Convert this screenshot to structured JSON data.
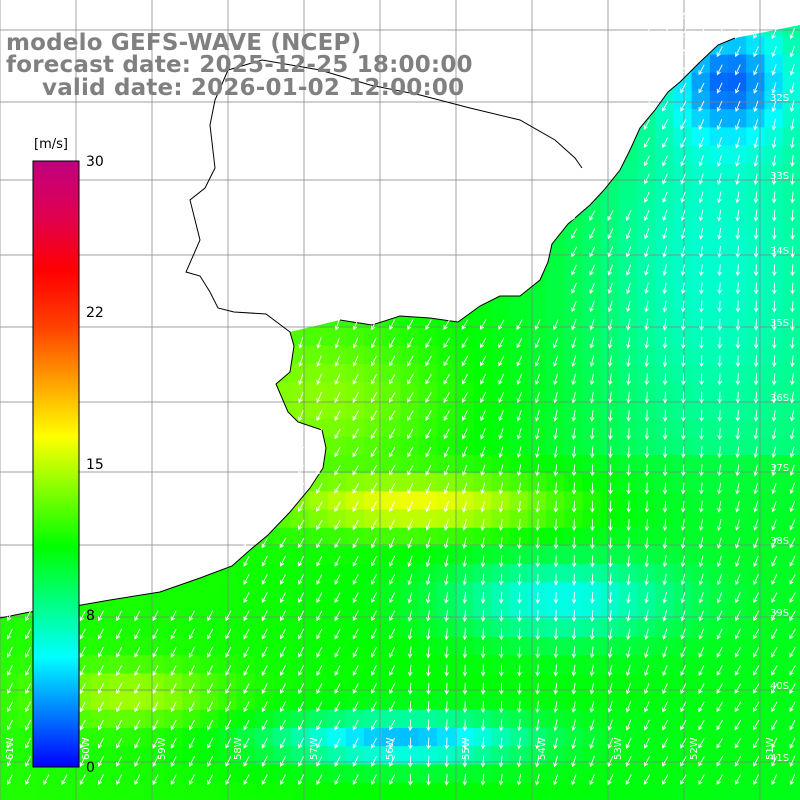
{
  "title": {
    "line1": "modelo GEFS-WAVE (NCEP)",
    "line2": "forecast date: 2025-12-25 18:00:00",
    "line3": "valid date: 2026-01-02 12:00:00"
  },
  "colorbar": {
    "unit": "[m/s]",
    "ticks": [
      "30",
      "22",
      "15",
      "8",
      "0"
    ],
    "tick_values": [
      30,
      22,
      15,
      8,
      0
    ],
    "range": [
      0,
      30
    ],
    "colors": [
      "#0000ff",
      "#0080ff",
      "#00ffff",
      "#00ff80",
      "#00ff00",
      "#80ff00",
      "#ffff00",
      "#ffa000",
      "#ff4000",
      "#ff0000",
      "#e00050",
      "#c00080"
    ]
  },
  "map": {
    "lat_labels": [
      "32S",
      "33S",
      "34S",
      "35S",
      "36S",
      "37S",
      "38S",
      "39S",
      "40S",
      "41S"
    ],
    "lon_labels": [
      "61W",
      "60W",
      "59W",
      "58W",
      "57W",
      "56W",
      "55W",
      "54W",
      "53W",
      "52W",
      "51W"
    ],
    "lat_range": [
      -41.2,
      -31.2
    ],
    "lon_range": [
      -61.5,
      -51
    ],
    "land_color": "#ffffff",
    "grid_color": "#808080",
    "coast_color": "#000000",
    "variable": "wind speed and direction"
  }
}
